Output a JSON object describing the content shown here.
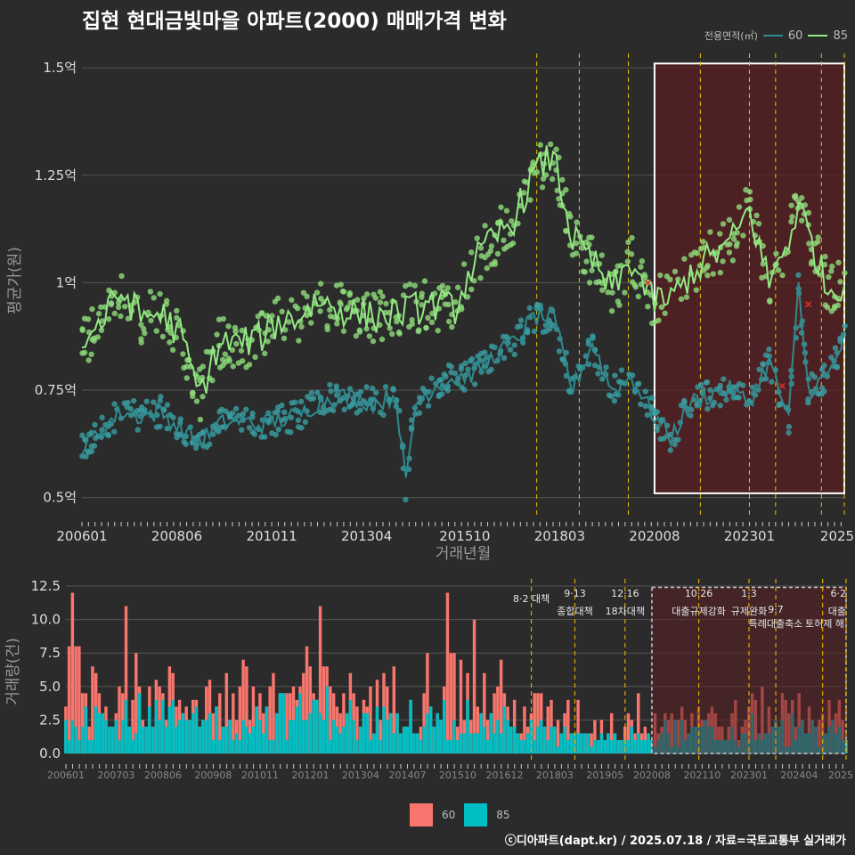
{
  "title": "집현 현대금빛마을 아파트(2000) 매매가격 변화",
  "credit": "ⓒ디아파트(dapt.kr) / 2025.07.18 / 자료=국토교통부 실거래가",
  "colors": {
    "background": "#2b2b2b",
    "grid": "#555555",
    "series_60_line": "#2e8b8f",
    "series_60_point": "#3a9ea2",
    "series_85_line": "#93e883",
    "series_85_point": "#8fdc7a",
    "bar_60": "#f8766d",
    "bar_85": "#00bfc4",
    "policy_line": "#e6c200",
    "highlight_fill": "#5a1f22",
    "highlight_border": "#ffffff"
  },
  "chart_data": [
    {
      "type": "line",
      "ylabel": "평균가(원)",
      "xlabel": "거래년월",
      "y_ticks": [
        0.5,
        0.75,
        1.0,
        1.25,
        1.5
      ],
      "y_tick_labels": [
        "0.5억",
        "0.75억",
        "1억",
        "1.25억",
        "1.5억"
      ],
      "ylim": [
        0.46,
        1.55
      ],
      "x_range": [
        "2006-01",
        "2025-06"
      ],
      "x_tick_labels": [
        "200601",
        "200806",
        "201011",
        "201304",
        "201510",
        "201803",
        "202008",
        "202301",
        "2025"
      ],
      "legend_title": "전용면적(㎡)",
      "legend_entries": [
        "60",
        "85"
      ],
      "policy_lines": [
        "2017-08",
        "2018-09",
        "2019-12",
        "2021-10",
        "2023-01",
        "2023-09",
        "2024-11",
        "2025-06"
      ],
      "highlight_range": [
        "2020-08",
        "2025-06"
      ],
      "series": [
        {
          "name": "60",
          "points": [
            [
              "2006-01",
              0.61
            ],
            [
              "2006-07",
              0.66
            ],
            [
              "2007-01",
              0.7
            ],
            [
              "2007-07",
              0.69
            ],
            [
              "2008-01",
              0.7
            ],
            [
              "2008-07",
              0.66
            ],
            [
              "2009-01",
              0.63
            ],
            [
              "2009-07",
              0.67
            ],
            [
              "2010-01",
              0.68
            ],
            [
              "2010-07",
              0.67
            ],
            [
              "2011-01",
              0.68
            ],
            [
              "2011-07",
              0.69
            ],
            [
              "2012-01",
              0.72
            ],
            [
              "2012-07",
              0.74
            ],
            [
              "2013-01",
              0.73
            ],
            [
              "2013-07",
              0.72
            ],
            [
              "2014-01",
              0.74
            ],
            [
              "2014-04",
              0.53
            ],
            [
              "2014-07",
              0.72
            ],
            [
              "2015-01",
              0.76
            ],
            [
              "2015-07",
              0.78
            ],
            [
              "2016-01",
              0.79
            ],
            [
              "2016-07",
              0.83
            ],
            [
              "2017-01",
              0.86
            ],
            [
              "2017-07",
              0.92
            ],
            [
              "2018-01",
              0.92
            ],
            [
              "2018-07",
              0.75
            ],
            [
              "2019-01",
              0.86
            ],
            [
              "2019-07",
              0.75
            ],
            [
              "2020-01",
              0.78
            ],
            [
              "2020-07",
              0.7
            ],
            [
              "2021-01",
              0.64
            ],
            [
              "2021-07",
              0.72
            ],
            [
              "2022-01",
              0.74
            ],
            [
              "2022-07",
              0.75
            ],
            [
              "2023-01",
              0.72
            ],
            [
              "2023-07",
              0.82
            ],
            [
              "2024-01",
              0.68
            ],
            [
              "2024-04",
              0.99
            ],
            [
              "2024-07",
              0.75
            ],
            [
              "2025-01",
              0.78
            ],
            [
              "2025-06",
              0.87
            ]
          ]
        },
        {
          "name": "85",
          "points": [
            [
              "2006-01",
              0.86
            ],
            [
              "2006-07",
              0.91
            ],
            [
              "2007-01",
              0.98
            ],
            [
              "2007-07",
              0.92
            ],
            [
              "2008-01",
              0.93
            ],
            [
              "2008-07",
              0.88
            ],
            [
              "2009-01",
              0.74
            ],
            [
              "2009-07",
              0.86
            ],
            [
              "2010-01",
              0.86
            ],
            [
              "2010-07",
              0.87
            ],
            [
              "2011-01",
              0.91
            ],
            [
              "2011-07",
              0.92
            ],
            [
              "2012-01",
              0.96
            ],
            [
              "2012-07",
              0.94
            ],
            [
              "2013-01",
              0.93
            ],
            [
              "2013-07",
              0.92
            ],
            [
              "2014-01",
              0.93
            ],
            [
              "2014-07",
              0.94
            ],
            [
              "2015-01",
              0.95
            ],
            [
              "2015-07",
              0.94
            ],
            [
              "2016-01",
              1.05
            ],
            [
              "2016-07",
              1.1
            ],
            [
              "2017-01",
              1.15
            ],
            [
              "2017-07",
              1.25
            ],
            [
              "2018-01",
              1.3
            ],
            [
              "2018-07",
              1.1
            ],
            [
              "2019-01",
              1.05
            ],
            [
              "2019-07",
              0.98
            ],
            [
              "2020-01",
              1.05
            ],
            [
              "2020-07",
              0.96
            ],
            [
              "2021-01",
              0.96
            ],
            [
              "2021-07",
              1.02
            ],
            [
              "2022-01",
              1.06
            ],
            [
              "2022-07",
              1.09
            ],
            [
              "2023-01",
              1.17
            ],
            [
              "2023-07",
              1.0
            ],
            [
              "2024-01",
              1.1
            ],
            [
              "2024-04",
              1.18
            ],
            [
              "2024-07",
              1.12
            ],
            [
              "2025-01",
              0.98
            ],
            [
              "2025-06",
              1.0
            ]
          ]
        }
      ],
      "marker_x": [
        [
          "2020-06",
          1.0
        ],
        [
          "2023-11",
          0.76
        ],
        [
          "2024-07",
          0.95
        ]
      ]
    },
    {
      "type": "bar",
      "ylabel": "거래량(건)",
      "y_ticks": [
        0.0,
        2.5,
        5.0,
        7.5,
        10.0,
        12.5
      ],
      "y_tick_labels": [
        "0.0",
        "2.5",
        "5.0",
        "7.5",
        "10.0",
        "12.5"
      ],
      "ylim": [
        -0.6,
        12.9
      ],
      "x_range": [
        "2006-01",
        "2025-06"
      ],
      "x_tick_labels": [
        "200601",
        "200703",
        "200806",
        "200908",
        "201011",
        "201201",
        "201304",
        "201407",
        "201510",
        "201612",
        "201803",
        "201905",
        "202008",
        "202110",
        "202301",
        "202404",
        "2025"
      ],
      "legend_entries": [
        "60",
        "85"
      ],
      "annotations": [
        {
          "date": "2017-08",
          "lines": [
            "8·2 대책"
          ]
        },
        {
          "date": "2018-09",
          "lines": [
            "9·13",
            "종합대책"
          ]
        },
        {
          "date": "2019-12",
          "lines": [
            "12·16",
            "18차대책"
          ]
        },
        {
          "date": "2021-10",
          "lines": [
            "10·26",
            "대출규제강화"
          ]
        },
        {
          "date": "2023-01",
          "lines": [
            "1·3",
            "규제완화"
          ]
        },
        {
          "date": "2023-09",
          "lines": [
            "9·7",
            "특례대출축소"
          ]
        },
        {
          "date": "2024-11",
          "lines": [
            "토허제 해"
          ]
        },
        {
          "date": "2025-06",
          "lines": [
            "6·2",
            "대출"
          ]
        }
      ],
      "highlight_range": [
        "2020-08",
        "2025-06"
      ],
      "series": [
        {
          "name": "60",
          "monthly_avg_by_year": [
            [
              "2006",
              5.0
            ],
            [
              "2007",
              4.6
            ],
            [
              "2008",
              4.0
            ],
            [
              "2009",
              3.9
            ],
            [
              "2010",
              4.2
            ],
            [
              "2011",
              4.4
            ],
            [
              "2012",
              4.8
            ],
            [
              "2013",
              3.8
            ],
            [
              "2014",
              4.3
            ],
            [
              "2015",
              5.0
            ],
            [
              "2016",
              4.2
            ],
            [
              "2017",
              3.0
            ],
            [
              "2018",
              2.6
            ],
            [
              "2019",
              2.0
            ],
            [
              "2020",
              2.8
            ],
            [
              "2021",
              3.0
            ],
            [
              "2022",
              2.4
            ],
            [
              "2023",
              3.0
            ],
            [
              "2024",
              3.4
            ],
            [
              "2025",
              2.6
            ]
          ]
        },
        {
          "name": "85",
          "monthly_avg_by_year": [
            [
              "2006",
              2.8
            ],
            [
              "2007",
              2.6
            ],
            [
              "2008",
              2.5
            ],
            [
              "2009",
              2.4
            ],
            [
              "2010",
              2.6
            ],
            [
              "2011",
              2.8
            ],
            [
              "2012",
              3.0
            ],
            [
              "2013",
              2.4
            ],
            [
              "2014",
              2.6
            ],
            [
              "2015",
              3.2
            ],
            [
              "2016",
              2.4
            ],
            [
              "2017",
              1.8
            ],
            [
              "2018",
              1.4
            ],
            [
              "2019",
              1.2
            ],
            [
              "2020",
              1.5
            ],
            [
              "2021",
              1.6
            ],
            [
              "2022",
              1.3
            ],
            [
              "2023",
              1.8
            ],
            [
              "2024",
              2.0
            ],
            [
              "2025",
              1.4
            ]
          ]
        }
      ],
      "peaks": [
        [
          "2006-03",
          12
        ],
        [
          "2007-07",
          11
        ],
        [
          "2012-05",
          11
        ],
        [
          "2015-07",
          12
        ],
        [
          "2016-03",
          10
        ]
      ]
    }
  ]
}
